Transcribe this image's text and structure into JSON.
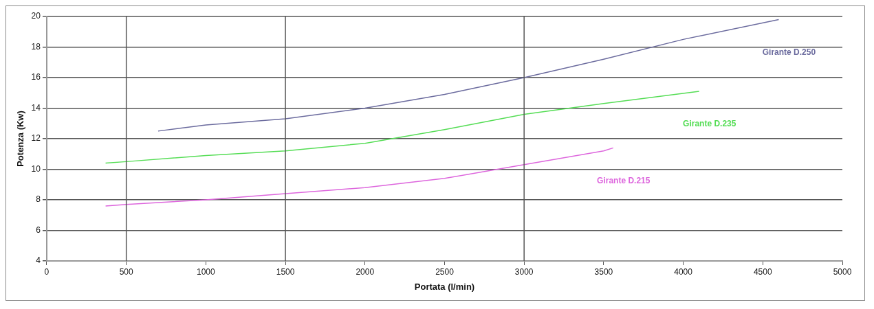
{
  "chart_data": {
    "type": "line",
    "xlabel": "Portata (l/min)",
    "ylabel": "Potenza (Kw)",
    "xlim": [
      0,
      5000
    ],
    "xticks": [
      0,
      500,
      1000,
      1500,
      2000,
      2500,
      3000,
      3500,
      4000,
      4500,
      5000
    ],
    "ylim": [
      4,
      20
    ],
    "yticks": [
      4,
      6,
      8,
      10,
      12,
      14,
      16,
      18,
      20
    ],
    "grid": "y",
    "legend": false,
    "marker": "none",
    "line_style": "solid",
    "ref_lines": [
      {
        "axis": "x",
        "value": 500,
        "color": "#555555"
      },
      {
        "axis": "x",
        "value": 1500,
        "color": "#555555"
      },
      {
        "axis": "x",
        "value": 3000,
        "color": "#555555"
      }
    ],
    "series": [
      {
        "name": "Girante D.250",
        "color": "#6b6b9e",
        "x": [
          700,
          1000,
          1500,
          2000,
          2500,
          3000,
          3500,
          4000,
          4600
        ],
        "values": [
          12.5,
          12.9,
          13.3,
          14.0,
          14.9,
          16.0,
          17.2,
          18.5,
          19.8
        ]
      },
      {
        "name": "Girante D.235",
        "color": "#55dd55",
        "x": [
          370,
          500,
          1000,
          1500,
          2000,
          2500,
          3000,
          3500,
          4100
        ],
        "values": [
          10.4,
          10.5,
          10.9,
          11.2,
          11.7,
          12.6,
          13.6,
          14.3,
          15.1
        ]
      },
      {
        "name": "Girante D.215",
        "color": "#dd66dd",
        "x": [
          370,
          500,
          1000,
          1500,
          2000,
          2500,
          3000,
          3500,
          3560
        ],
        "values": [
          7.6,
          7.7,
          8.0,
          8.4,
          8.8,
          9.4,
          10.3,
          11.2,
          11.4
        ]
      }
    ]
  }
}
